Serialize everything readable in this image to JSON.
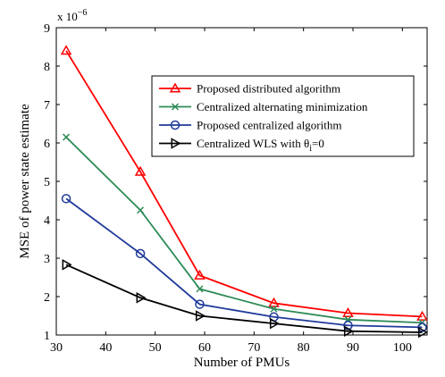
{
  "chart_data": {
    "type": "line",
    "title": "",
    "xlabel": "Number of PMUs",
    "ylabel": "MSE of  power state estimate",
    "y_exponent": {
      "base": "x 10",
      "power": "−6"
    },
    "xlim": [
      30,
      105
    ],
    "ylim": [
      1,
      9
    ],
    "xticks": [
      30,
      40,
      50,
      60,
      70,
      80,
      90,
      100
    ],
    "yticks": [
      1,
      2,
      3,
      4,
      5,
      6,
      7,
      8,
      9
    ],
    "grid": false,
    "legend_placement": "top-right",
    "x": [
      32,
      47,
      59,
      74,
      89,
      104
    ],
    "series": [
      {
        "name": "Proposed distributed algorithm",
        "legend_main": "Proposed distributed algorithm",
        "legend_sub": "",
        "legend_tail": "",
        "color": "#ff0000",
        "marker": "triangle-up",
        "values": [
          8.4,
          5.25,
          2.55,
          1.83,
          1.57,
          1.48
        ]
      },
      {
        "name": "Centralized alternating minimization",
        "legend_main": "Centralized alternating minimization",
        "legend_sub": "",
        "legend_tail": "",
        "color": "#2e8b57",
        "marker": "x",
        "values": [
          6.15,
          4.25,
          2.2,
          1.68,
          1.4,
          1.32
        ]
      },
      {
        "name": "Proposed centralized algorithm",
        "legend_main": "Proposed centralized algorithm",
        "legend_sub": "",
        "legend_tail": "",
        "color": "#1f3a9a",
        "marker": "circle",
        "values": [
          4.55,
          3.12,
          1.8,
          1.47,
          1.25,
          1.2
        ]
      },
      {
        "name": "Centralized WLS with θi=0",
        "legend_main": "Centralized WLS with θ",
        "legend_sub": "i",
        "legend_tail": "=0",
        "color": "#000000",
        "marker": "triangle-right",
        "values": [
          2.83,
          1.97,
          1.5,
          1.3,
          1.1,
          1.07
        ]
      }
    ]
  }
}
